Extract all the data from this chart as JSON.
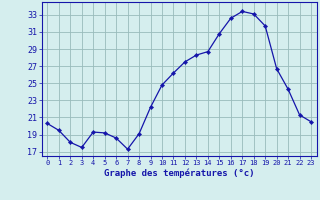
{
  "hours": [
    0,
    1,
    2,
    3,
    4,
    5,
    6,
    7,
    8,
    9,
    10,
    11,
    12,
    13,
    14,
    15,
    16,
    17,
    18,
    19,
    20,
    21,
    22,
    23
  ],
  "temperatures": [
    20.3,
    19.5,
    18.1,
    17.5,
    19.3,
    19.2,
    18.6,
    17.3,
    19.1,
    22.2,
    24.8,
    26.2,
    27.5,
    28.3,
    28.7,
    30.8,
    32.6,
    33.4,
    33.1,
    31.7,
    26.7,
    24.3,
    21.3,
    20.5
  ],
  "line_color": "#1515aa",
  "marker": "D",
  "marker_size": 2.2,
  "bg_color": "#d5eeee",
  "grid_color": "#99bbbb",
  "xlabel": "Graphe des températures (°c)",
  "xlabel_color": "#1515aa",
  "tick_color": "#1515aa",
  "axis_line_color": "#1515aa",
  "ylim": [
    16.5,
    34.5
  ],
  "xlim": [
    -0.5,
    23.5
  ],
  "yticks": [
    17,
    19,
    21,
    23,
    25,
    27,
    29,
    31,
    33
  ],
  "xtick_labels": [
    "0",
    "1",
    "2",
    "3",
    "4",
    "5",
    "6",
    "7",
    "8",
    "9",
    "10",
    "11",
    "12",
    "13",
    "14",
    "15",
    "16",
    "17",
    "18",
    "19",
    "20",
    "21",
    "22",
    "23"
  ]
}
